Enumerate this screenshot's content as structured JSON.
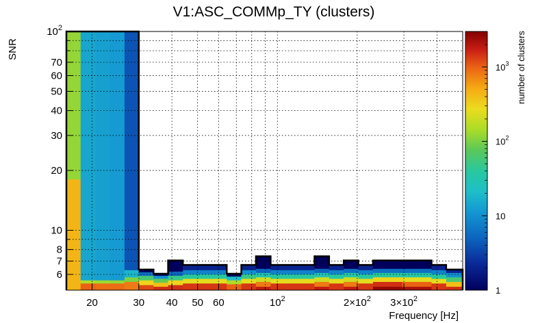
{
  "chart_data": {
    "type": "heatmap",
    "title": "V1:ASC_COMMp_TY (clusters)",
    "xlabel": "Frequency [Hz]",
    "ylabel": "SNR",
    "colorbar_label": "number of clusters",
    "x_scale": "log",
    "y_scale": "log",
    "z_scale": "log",
    "xlim": [
      16,
      500
    ],
    "ylim": [
      5,
      100
    ],
    "zlim": [
      1,
      3000
    ],
    "grid": true,
    "x_ticks": [
      {
        "value": 20,
        "label": "20"
      },
      {
        "value": 30,
        "label": "30"
      },
      {
        "value": 40,
        "label": "40"
      },
      {
        "value": 50,
        "label": "50"
      },
      {
        "value": 60,
        "label": "60"
      },
      {
        "value": 100,
        "label": "10^2"
      },
      {
        "value": 200,
        "label": "2×10^2"
      },
      {
        "value": 300,
        "label": "3×10^2"
      }
    ],
    "y_ticks": [
      {
        "value": 6,
        "label": "6"
      },
      {
        "value": 7,
        "label": "7"
      },
      {
        "value": 8,
        "label": "8"
      },
      {
        "value": 10,
        "label": "10"
      },
      {
        "value": 20,
        "label": "20"
      },
      {
        "value": 30,
        "label": "30"
      },
      {
        "value": 40,
        "label": "40"
      },
      {
        "value": 50,
        "label": "50"
      },
      {
        "value": 60,
        "label": "60"
      },
      {
        "value": 70,
        "label": "70"
      },
      {
        "value": 100,
        "label": "10^2"
      }
    ],
    "z_ticks": [
      {
        "value": 1,
        "label": "1"
      },
      {
        "value": 10,
        "label": "10"
      },
      {
        "value": 100,
        "label": "10^2"
      },
      {
        "value": 1000,
        "label": "10^3"
      }
    ],
    "columns": [
      {
        "f0": 16.0,
        "f1": 18.1,
        "cells": [
          [
            100,
            18,
            120
          ],
          [
            18,
            5,
            450
          ]
        ]
      },
      {
        "f0": 18.1,
        "f1": 20.6,
        "cells": [
          [
            100,
            5.6,
            14
          ],
          [
            5.6,
            5.4,
            150
          ],
          [
            5.4,
            5,
            1000
          ]
        ]
      },
      {
        "f0": 20.6,
        "f1": 23.3,
        "cells": [
          [
            100,
            5.6,
            13
          ],
          [
            5.6,
            5.4,
            130
          ],
          [
            5.4,
            5,
            900
          ]
        ]
      },
      {
        "f0": 23.3,
        "f1": 26.5,
        "cells": [
          [
            100,
            5.6,
            12
          ],
          [
            5.6,
            5.4,
            120
          ],
          [
            5.4,
            5,
            900
          ]
        ]
      },
      {
        "f0": 26.5,
        "f1": 30.0,
        "cells": [
          [
            100,
            6.3,
            4
          ],
          [
            6.3,
            5.8,
            18
          ],
          [
            5.8,
            5.5,
            100
          ],
          [
            5.5,
            5,
            800
          ]
        ]
      },
      {
        "f0": 30.0,
        "f1": 34.1,
        "cells": [
          [
            6.35,
            6.15,
            1
          ],
          [
            6.15,
            5.9,
            6
          ],
          [
            5.9,
            5.6,
            60
          ],
          [
            5.6,
            5.3,
            300
          ],
          [
            5.3,
            5,
            1200
          ]
        ]
      },
      {
        "f0": 34.1,
        "f1": 38.7,
        "cells": [
          [
            6.05,
            5.9,
            1
          ],
          [
            5.9,
            5.7,
            10
          ],
          [
            5.7,
            5.45,
            80
          ],
          [
            5.45,
            5.2,
            400
          ],
          [
            5.2,
            5,
            1500
          ]
        ]
      },
      {
        "f0": 38.7,
        "f1": 44.0,
        "cells": [
          [
            7.05,
            6.2,
            1
          ],
          [
            6.2,
            5.9,
            5
          ],
          [
            5.9,
            5.6,
            50
          ],
          [
            5.6,
            5.3,
            300
          ],
          [
            5.3,
            5,
            1500
          ]
        ]
      },
      {
        "f0": 44.0,
        "f1": 50.0,
        "cells": [
          [
            6.7,
            6.3,
            2
          ],
          [
            6.3,
            6.0,
            8
          ],
          [
            6.0,
            5.7,
            40
          ],
          [
            5.7,
            5.4,
            250
          ],
          [
            5.4,
            5,
            1400
          ]
        ]
      },
      {
        "f0": 50.0,
        "f1": 56.7,
        "cells": [
          [
            6.7,
            6.3,
            2
          ],
          [
            6.3,
            6.0,
            8
          ],
          [
            6.0,
            5.7,
            40
          ],
          [
            5.7,
            5.4,
            250
          ],
          [
            5.4,
            5,
            1400
          ]
        ]
      },
      {
        "f0": 56.7,
        "f1": 64.4,
        "cells": [
          [
            6.7,
            6.3,
            2
          ],
          [
            6.3,
            6.0,
            8
          ],
          [
            6.0,
            5.7,
            40
          ],
          [
            5.7,
            5.4,
            250
          ],
          [
            5.4,
            5,
            1400
          ]
        ]
      },
      {
        "f0": 64.4,
        "f1": 73.1,
        "cells": [
          [
            6.05,
            5.85,
            1
          ],
          [
            5.85,
            5.6,
            20
          ],
          [
            5.6,
            5.35,
            150
          ],
          [
            5.35,
            5,
            1000
          ]
        ]
      },
      {
        "f0": 73.1,
        "f1": 83.0,
        "cells": [
          [
            6.7,
            6.3,
            2
          ],
          [
            6.3,
            6.0,
            10
          ],
          [
            6.0,
            5.7,
            50
          ],
          [
            5.7,
            5.4,
            250
          ],
          [
            5.4,
            5,
            1400
          ]
        ]
      },
      {
        "f0": 83.0,
        "f1": 94.3,
        "cells": [
          [
            7.4,
            6.4,
            1
          ],
          [
            6.4,
            6.1,
            5
          ],
          [
            6.1,
            5.8,
            30
          ],
          [
            5.8,
            5.5,
            200
          ],
          [
            5.5,
            5.2,
            800
          ],
          [
            5.2,
            5,
            1800
          ]
        ]
      },
      {
        "f0": 94.3,
        "f1": 107.0,
        "cells": [
          [
            6.7,
            6.3,
            2
          ],
          [
            6.3,
            6.0,
            8
          ],
          [
            6.0,
            5.7,
            40
          ],
          [
            5.7,
            5.4,
            250
          ],
          [
            5.4,
            5,
            1400
          ]
        ]
      },
      {
        "f0": 107.0,
        "f1": 121.5,
        "cells": [
          [
            6.7,
            6.3,
            2
          ],
          [
            6.3,
            6.0,
            8
          ],
          [
            6.0,
            5.7,
            40
          ],
          [
            5.7,
            5.4,
            250
          ],
          [
            5.4,
            5,
            1400
          ]
        ]
      },
      {
        "f0": 121.5,
        "f1": 138.0,
        "cells": [
          [
            6.7,
            6.3,
            2
          ],
          [
            6.3,
            6.0,
            8
          ],
          [
            6.0,
            5.7,
            40
          ],
          [
            5.7,
            5.4,
            250
          ],
          [
            5.4,
            5,
            1400
          ]
        ]
      },
      {
        "f0": 138.0,
        "f1": 156.7,
        "cells": [
          [
            7.4,
            6.4,
            1
          ],
          [
            6.4,
            6.1,
            5
          ],
          [
            6.1,
            5.8,
            30
          ],
          [
            5.8,
            5.5,
            200
          ],
          [
            5.5,
            5.2,
            800
          ],
          [
            5.2,
            5,
            1800
          ]
        ]
      },
      {
        "f0": 156.7,
        "f1": 177.9,
        "cells": [
          [
            6.7,
            6.3,
            2
          ],
          [
            6.3,
            6.0,
            8
          ],
          [
            6.0,
            5.7,
            40
          ],
          [
            5.7,
            5.4,
            250
          ],
          [
            5.4,
            5,
            1400
          ]
        ]
      },
      {
        "f0": 177.9,
        "f1": 202.0,
        "cells": [
          [
            7.05,
            6.4,
            1
          ],
          [
            6.4,
            6.1,
            6
          ],
          [
            6.1,
            5.8,
            35
          ],
          [
            5.8,
            5.5,
            200
          ],
          [
            5.5,
            5.2,
            800
          ],
          [
            5.2,
            5,
            1800
          ]
        ]
      },
      {
        "f0": 202.0,
        "f1": 229.4,
        "cells": [
          [
            6.7,
            6.3,
            2
          ],
          [
            6.3,
            6.0,
            8
          ],
          [
            6.0,
            5.7,
            40
          ],
          [
            5.7,
            5.4,
            250
          ],
          [
            5.4,
            5,
            1400
          ]
        ]
      },
      {
        "f0": 229.4,
        "f1": 260.5,
        "cells": [
          [
            7.05,
            6.4,
            1
          ],
          [
            6.4,
            6.1,
            6
          ],
          [
            6.1,
            5.8,
            40
          ],
          [
            5.8,
            5.5,
            300
          ],
          [
            5.5,
            5.2,
            1500
          ],
          [
            5.2,
            5,
            2600
          ]
        ]
      },
      {
        "f0": 260.5,
        "f1": 295.8,
        "cells": [
          [
            7.05,
            6.4,
            1
          ],
          [
            6.4,
            6.1,
            6
          ],
          [
            6.1,
            5.8,
            40
          ],
          [
            5.8,
            5.5,
            300
          ],
          [
            5.5,
            5.2,
            1500
          ],
          [
            5.2,
            5,
            2600
          ]
        ]
      },
      {
        "f0": 295.8,
        "f1": 335.9,
        "cells": [
          [
            7.05,
            6.4,
            1
          ],
          [
            6.4,
            6.1,
            6
          ],
          [
            6.1,
            5.8,
            35
          ],
          [
            5.8,
            5.5,
            250
          ],
          [
            5.5,
            5.2,
            1000
          ],
          [
            5.2,
            5,
            2200
          ]
        ]
      },
      {
        "f0": 335.9,
        "f1": 381.4,
        "cells": [
          [
            7.05,
            6.4,
            1
          ],
          [
            6.4,
            6.1,
            6
          ],
          [
            6.1,
            5.8,
            35
          ],
          [
            5.8,
            5.5,
            250
          ],
          [
            5.5,
            5.2,
            1000
          ],
          [
            5.2,
            5,
            2200
          ]
        ]
      },
      {
        "f0": 381.4,
        "f1": 433.1,
        "cells": [
          [
            6.7,
            6.3,
            2
          ],
          [
            6.3,
            6.0,
            8
          ],
          [
            6.0,
            5.7,
            40
          ],
          [
            5.7,
            5.4,
            250
          ],
          [
            5.4,
            5,
            1400
          ]
        ]
      },
      {
        "f0": 433.1,
        "f1": 500.0,
        "cells": [
          [
            6.35,
            6.1,
            2
          ],
          [
            6.1,
            5.8,
            10
          ],
          [
            5.8,
            5.5,
            60
          ],
          [
            5.5,
            5.2,
            400
          ],
          [
            5.2,
            5,
            1500
          ]
        ]
      }
    ]
  }
}
